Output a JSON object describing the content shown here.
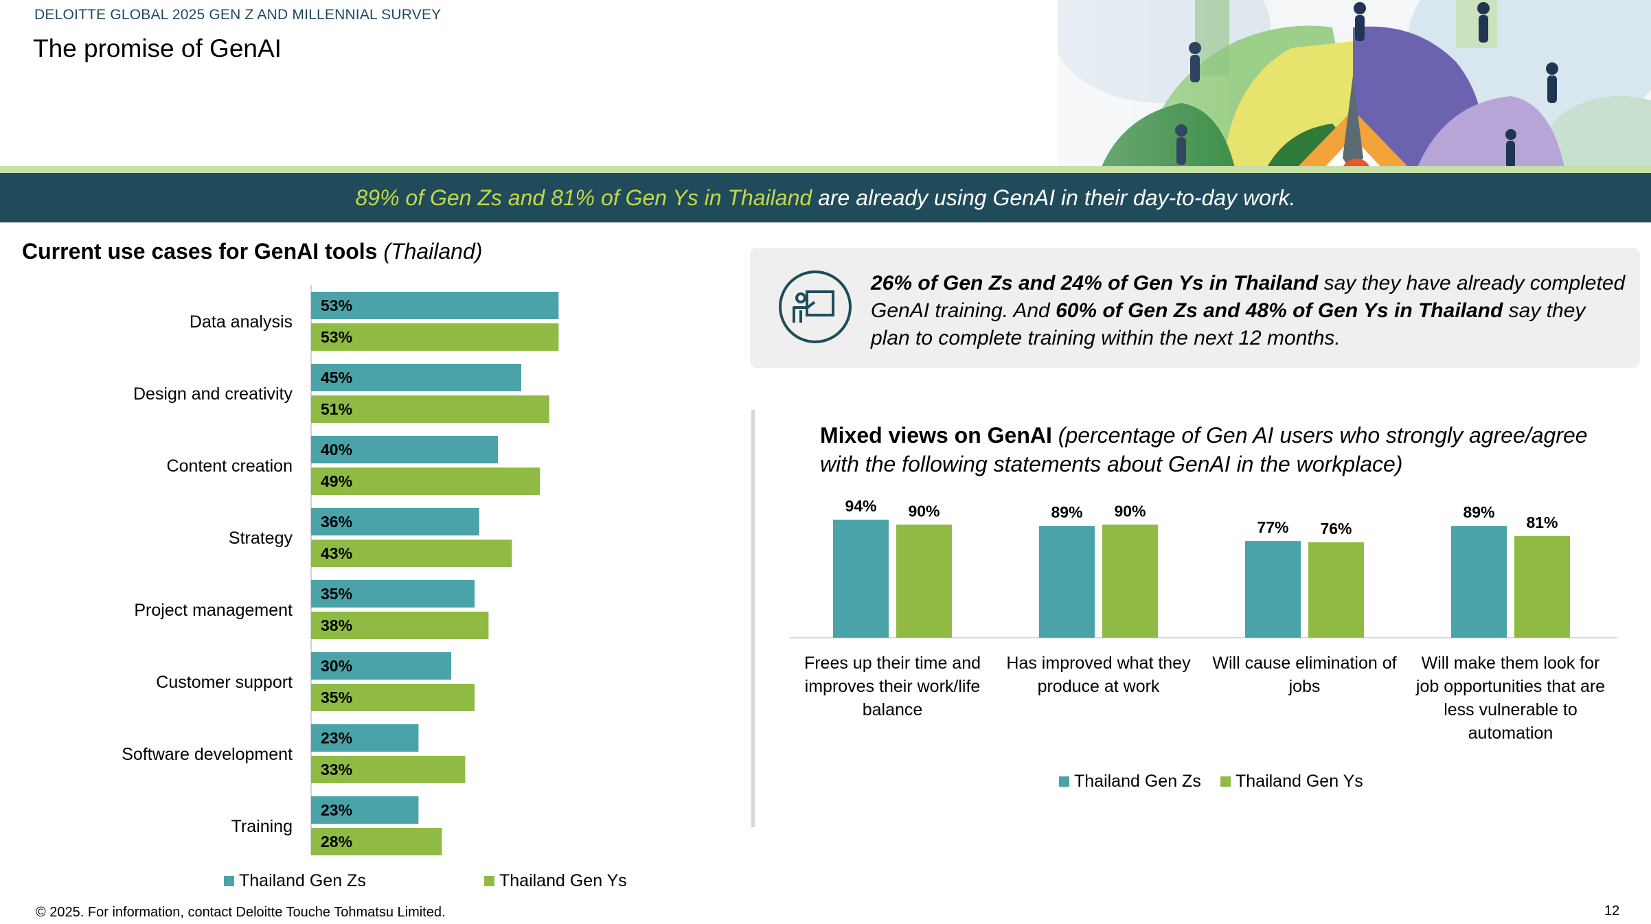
{
  "header": {
    "survey_label": "DELOITTE GLOBAL 2025 GEN Z AND MILLENNIAL SURVEY",
    "page_title": "The promise of GenAI"
  },
  "banner": {
    "highlight": "89% of Gen Zs and 81% of Gen Ys in Thailand",
    "rest": " are already using GenAI in their day-to-day work."
  },
  "callout": {
    "icon": "training-presentation-icon",
    "highlight_1": "26% of Gen Zs and 24% of Gen Ys in Thailand",
    "text_1": " say they have already completed GenAI training. And ",
    "highlight_2": "60% of Gen Zs and 48% of Gen Ys in Thailand",
    "text_2": " say they plan to complete training within the next 12 months."
  },
  "colors": {
    "gen_z": "#4aa3a8",
    "gen_y": "#8fbb45",
    "banner": "#204b5a",
    "highlight": "#c4d84a"
  },
  "chart_data": [
    {
      "type": "bar",
      "orientation": "horizontal",
      "title": "Current use cases for GenAI tools",
      "subtitle": "(Thailand)",
      "categories": [
        "Data analysis",
        "Design and creativity",
        "Content creation",
        "Strategy",
        "Project management",
        "Customer support",
        "Software development",
        "Training"
      ],
      "series": [
        {
          "name": "Thailand Gen Zs",
          "values": [
            53,
            45,
            40,
            36,
            35,
            30,
            23,
            23
          ]
        },
        {
          "name": "Thailand Gen Ys",
          "values": [
            53,
            51,
            49,
            43,
            38,
            35,
            33,
            28
          ]
        }
      ],
      "xlim": [
        0,
        100
      ],
      "unit": "%",
      "legend": "bottom"
    },
    {
      "type": "bar",
      "orientation": "vertical",
      "title": "Mixed views on GenAI",
      "subtitle": "(percentage of Gen AI users who strongly agree/agree with the following statements about GenAI in the workplace)",
      "categories": [
        "Frees up their time and improves their work/life balance",
        "Has improved what they produce at work",
        "Will cause elimination of jobs",
        "Will make them look for job opportunities that are less vulnerable to automation"
      ],
      "series": [
        {
          "name": "Thailand Gen Zs",
          "values": [
            94,
            89,
            77,
            89
          ]
        },
        {
          "name": "Thailand Gen Ys",
          "values": [
            90,
            90,
            76,
            81
          ]
        }
      ],
      "ylim": [
        0,
        100
      ],
      "unit": "%",
      "legend": "bottom"
    }
  ],
  "footer": {
    "copyright": "© 2025. For information, contact Deloitte Touche Tohmatsu Limited.",
    "page_number": "12"
  }
}
